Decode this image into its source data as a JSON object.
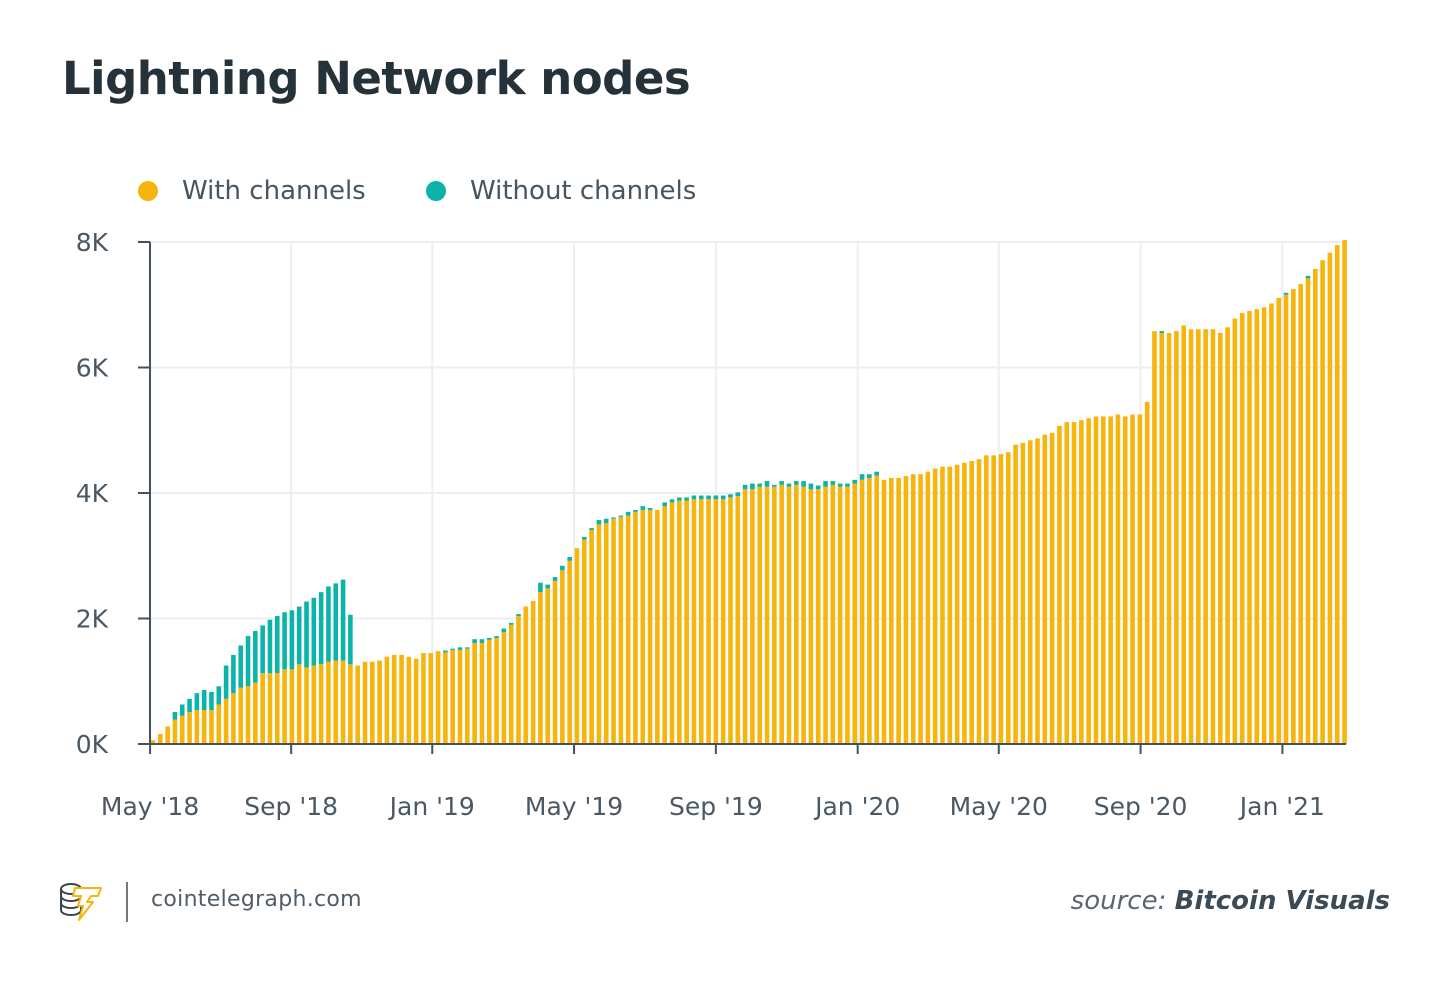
{
  "title": "Lightning Network nodes",
  "footer": {
    "site": "cointelegraph.com",
    "source_prefix": "source:",
    "source_name": "Bitcoin Visuals"
  },
  "colors": {
    "with": "#f6b40c",
    "without": "#0bb3a8",
    "axis": "#44525c",
    "grid": "#eeeeee"
  },
  "chart_data": {
    "type": "bar",
    "stacked": true,
    "title": "Lightning Network nodes",
    "xlabel": "",
    "ylabel": "",
    "frequency": "weekly",
    "x_unit": "week index (0 = first week, mid-May 2018)",
    "y_unit": "thousands of nodes",
    "ylim": [
      0,
      8
    ],
    "y_ticks": [
      {
        "value": 0,
        "label": "0K"
      },
      {
        "value": 2,
        "label": "2K"
      },
      {
        "value": 4,
        "label": "4K"
      },
      {
        "value": 6,
        "label": "6K"
      },
      {
        "value": 8,
        "label": "8K"
      }
    ],
    "x_ticks": [
      {
        "label": "May '18",
        "week": -0.4
      },
      {
        "label": "Sep '18",
        "week": 18.9
      },
      {
        "label": "Jan '19",
        "week": 38.2
      },
      {
        "label": "May '19",
        "week": 57.6
      },
      {
        "label": "Sep '19",
        "week": 77.0
      },
      {
        "label": "Jan '20",
        "week": 96.4
      },
      {
        "label": "May '20",
        "week": 115.7
      },
      {
        "label": "Sep '20",
        "week": 135.1
      },
      {
        "label": "Jan '21",
        "week": 154.5
      }
    ],
    "grid": true,
    "legend": {
      "placement": "top-left",
      "entries": [
        "With channels",
        "Without channels"
      ]
    },
    "series": [
      {
        "name": "With channels",
        "values": [
          0.06,
          0.16,
          0.28,
          0.39,
          0.45,
          0.51,
          0.54,
          0.54,
          0.54,
          0.63,
          0.72,
          0.81,
          0.9,
          0.92,
          0.98,
          1.13,
          1.13,
          1.13,
          1.19,
          1.19,
          1.27,
          1.22,
          1.25,
          1.27,
          1.31,
          1.33,
          1.33,
          1.27,
          1.25,
          1.31,
          1.31,
          1.33,
          1.39,
          1.42,
          1.42,
          1.39,
          1.36,
          1.45,
          1.45,
          1.48,
          1.46,
          1.5,
          1.5,
          1.52,
          1.61,
          1.61,
          1.66,
          1.69,
          1.78,
          1.9,
          2.04,
          2.19,
          2.28,
          2.42,
          2.48,
          2.6,
          2.77,
          2.92,
          3.12,
          3.26,
          3.41,
          3.5,
          3.52,
          3.59,
          3.62,
          3.64,
          3.7,
          3.73,
          3.73,
          3.73,
          3.79,
          3.85,
          3.88,
          3.88,
          3.9,
          3.9,
          3.9,
          3.9,
          3.9,
          3.93,
          3.95,
          4.06,
          4.06,
          4.1,
          4.1,
          4.1,
          4.13,
          4.1,
          4.13,
          4.1,
          4.06,
          4.06,
          4.1,
          4.13,
          4.1,
          4.1,
          4.15,
          4.21,
          4.24,
          4.28,
          4.21,
          4.24,
          4.24,
          4.27,
          4.3,
          4.3,
          4.34,
          4.39,
          4.42,
          4.42,
          4.45,
          4.48,
          4.51,
          4.54,
          4.6,
          4.6,
          4.62,
          4.65,
          4.77,
          4.8,
          4.84,
          4.87,
          4.93,
          4.96,
          5.07,
          5.13,
          5.13,
          5.16,
          5.19,
          5.22,
          5.22,
          5.22,
          5.25,
          5.22,
          5.25,
          5.25,
          5.45,
          6.58,
          6.55,
          6.55,
          6.58,
          6.67,
          6.61,
          6.61,
          6.61,
          6.61,
          6.55,
          6.64,
          6.78,
          6.87,
          6.9,
          6.93,
          6.96,
          7.02,
          7.11,
          7.16,
          7.25,
          7.33,
          7.42,
          7.57,
          7.71,
          7.83,
          7.95,
          8.03
        ]
      },
      {
        "name": "Without channels",
        "values": [
          0,
          0,
          0,
          0.12,
          0.18,
          0.21,
          0.27,
          0.32,
          0.29,
          0.29,
          0.53,
          0.61,
          0.67,
          0.8,
          0.82,
          0.76,
          0.85,
          0.91,
          0.91,
          0.94,
          0.92,
          1.05,
          1.08,
          1.15,
          1.2,
          1.23,
          1.29,
          0.79,
          0,
          0,
          0,
          0,
          0,
          0,
          0,
          0,
          0,
          0,
          0,
          0,
          0.03,
          0.02,
          0.04,
          0.02,
          0.06,
          0.06,
          0.03,
          0.03,
          0.06,
          0.03,
          0.03,
          0,
          0,
          0.15,
          0.06,
          0.06,
          0.07,
          0.06,
          0,
          0.04,
          0.03,
          0.07,
          0.07,
          0.02,
          0.02,
          0.06,
          0.03,
          0.06,
          0.03,
          0,
          0.06,
          0.05,
          0.05,
          0.05,
          0.06,
          0.06,
          0.06,
          0.06,
          0.06,
          0.05,
          0.06,
          0.07,
          0.09,
          0.05,
          0.09,
          0.03,
          0.06,
          0.05,
          0.06,
          0.09,
          0.09,
          0.06,
          0.09,
          0.06,
          0.05,
          0.05,
          0.06,
          0.09,
          0.06,
          0.06,
          0,
          0,
          0,
          0,
          0,
          0,
          0,
          0,
          0,
          0,
          0,
          0,
          0,
          0,
          0,
          0,
          0,
          0,
          0,
          0,
          0,
          0,
          0,
          0,
          0,
          0,
          0,
          0,
          0,
          0,
          0,
          0,
          0,
          0,
          0,
          0,
          0,
          0,
          0.03,
          0,
          0,
          0,
          0,
          0,
          0,
          0,
          0,
          0,
          0,
          0,
          0,
          0,
          0,
          0,
          0,
          0.03,
          0,
          0,
          0.04,
          0,
          0,
          0,
          0,
          0
        ]
      }
    ]
  }
}
